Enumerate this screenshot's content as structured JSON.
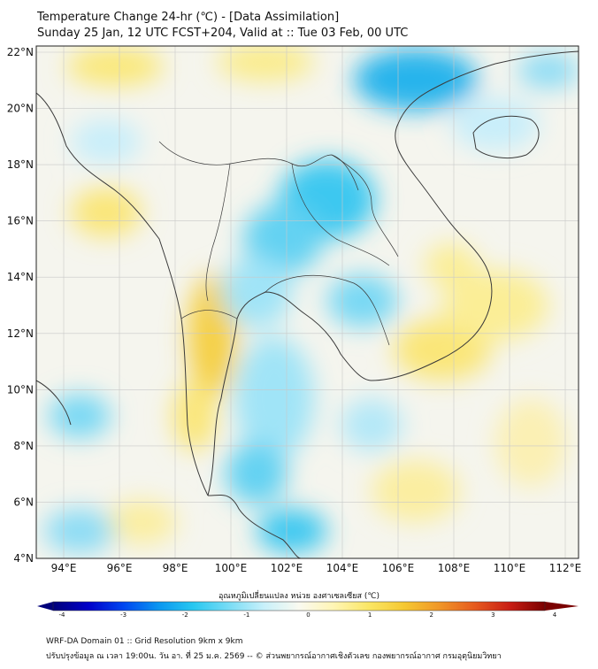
{
  "header": {
    "line1": "Temperature Change 24-hr (℃) - [Data Assimilation]",
    "line2": "Sunday 25 Jan, 12 UTC FCST+204, Valid at :: Tue 03 Feb, 00 UTC"
  },
  "map": {
    "lat_labels": [
      "22°N",
      "20°N",
      "18°N",
      "16°N",
      "14°N",
      "12°N",
      "10°N",
      "8°N",
      "6°N",
      "4°N"
    ],
    "lon_labels": [
      "94°E",
      "96°E",
      "98°E",
      "100°E",
      "102°E",
      "104°E",
      "106°E",
      "108°E",
      "110°E",
      "112°E"
    ],
    "colors": {
      "cool": "#32c8f0",
      "cool_deep": "#1ea0e6",
      "warm": "#fae664",
      "warm_strong": "#f0c83c",
      "neutral": "#f5f5f0",
      "coast": "#3a3a3a"
    }
  },
  "colorbar": {
    "label": "อุณหภูมิเปลี่ยนแปลง หน่วย องศาเซลเซียส (℃)",
    "ticks": [
      "-4",
      "-3",
      "-2",
      "-1",
      "0",
      "1",
      "2",
      "3",
      "4"
    ],
    "colors": [
      "#00007a",
      "#0000c8",
      "#0046f0",
      "#0a96f0",
      "#28c8f0",
      "#78dcf5",
      "#c8f0fa",
      "#fafaf0",
      "#fff5b4",
      "#fae664",
      "#f5c832",
      "#f09628",
      "#e65a1e",
      "#c81e14",
      "#7a0000"
    ]
  },
  "footer": {
    "line1": "WRF-DA Domain 01 :: Grid Resolution 9km x 9km",
    "line2": "ปรับปรุงข้อมูล ณ เวลา 19:00น. วัน อา. ที่ 25 ม.ค. 2569 -- © ส่วนพยากรณ์อากาศเชิงตัวเลข กองพยากรณ์อากาศ กรมอุตุนิยมวิทยา"
  }
}
